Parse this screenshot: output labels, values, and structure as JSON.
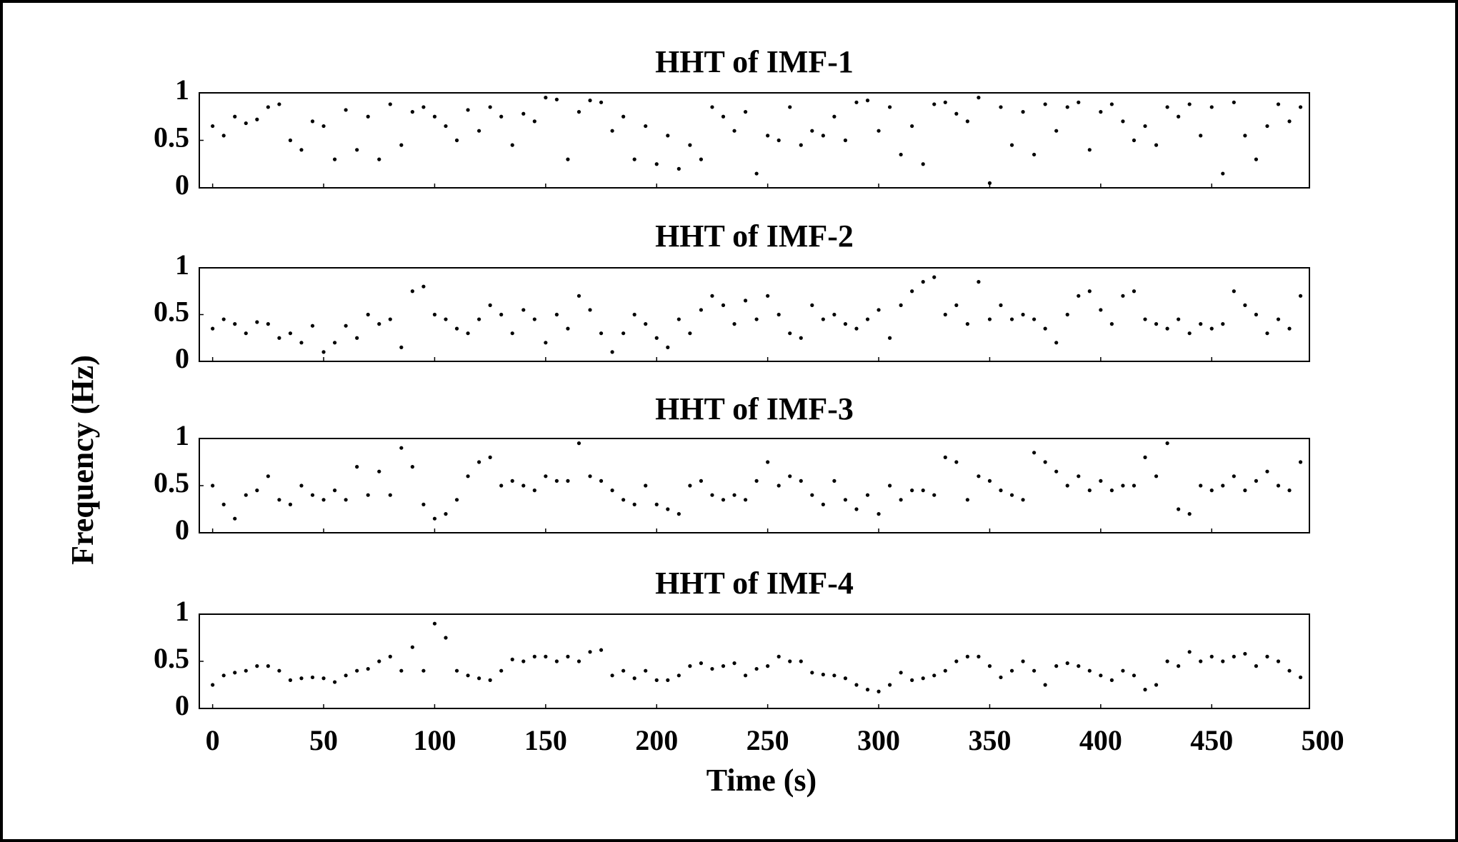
{
  "chart_data": {
    "type": "scatter",
    "xlabel": "Time  (s)",
    "ylabel": "Frequency  (Hz)",
    "color": "#000000",
    "x": [
      0,
      5,
      10,
      15,
      20,
      25,
      30,
      35,
      40,
      45,
      50,
      55,
      60,
      65,
      70,
      75,
      80,
      85,
      90,
      95,
      100,
      105,
      110,
      115,
      120,
      125,
      130,
      135,
      140,
      145,
      150,
      155,
      160,
      165,
      170,
      175,
      180,
      185,
      190,
      195,
      200,
      205,
      210,
      215,
      220,
      225,
      230,
      235,
      240,
      245,
      250,
      255,
      260,
      265,
      270,
      275,
      280,
      285,
      290,
      295,
      300,
      305,
      310,
      315,
      320,
      325,
      330,
      335,
      340,
      345,
      350,
      355,
      360,
      365,
      370,
      375,
      380,
      385,
      390,
      395,
      400,
      405,
      410,
      415,
      420,
      425,
      430,
      435,
      440,
      445,
      450,
      455,
      460,
      465,
      470,
      475,
      480,
      485,
      490
    ],
    "xlim": [
      -6,
      494
    ],
    "xticks": [
      0,
      50,
      100,
      150,
      200,
      250,
      300,
      350,
      400,
      450,
      500
    ],
    "ylim": [
      0,
      1
    ],
    "yticks": [
      0,
      0.5,
      1
    ],
    "series": [
      {
        "name": "HHT of IMF-1",
        "values": [
          0.65,
          0.55,
          0.75,
          0.68,
          0.72,
          0.85,
          0.88,
          0.5,
          0.4,
          0.7,
          0.65,
          0.3,
          0.82,
          0.4,
          0.75,
          0.3,
          0.88,
          0.45,
          0.8,
          0.85,
          0.75,
          0.65,
          0.5,
          0.82,
          0.6,
          0.85,
          0.75,
          0.45,
          0.78,
          0.7,
          0.95,
          0.93,
          0.3,
          0.8,
          0.92,
          0.9,
          0.6,
          0.75,
          0.3,
          0.65,
          0.25,
          0.55,
          0.2,
          0.45,
          0.3,
          0.85,
          0.75,
          0.6,
          0.8,
          0.15,
          0.55,
          0.5,
          0.85,
          0.45,
          0.6,
          0.55,
          0.75,
          0.5,
          0.9,
          0.92,
          0.6,
          0.85,
          0.35,
          0.65,
          0.25,
          0.88,
          0.9,
          0.78,
          0.7,
          0.95,
          0.05,
          0.85,
          0.45,
          0.8,
          0.35,
          0.88,
          0.6,
          0.85,
          0.9,
          0.4,
          0.8,
          0.88,
          0.7,
          0.5,
          0.65,
          0.45,
          0.85,
          0.75,
          0.88,
          0.55,
          0.85,
          0.15,
          0.9,
          0.55,
          0.3,
          0.65,
          0.88,
          0.7,
          0.85
        ]
      },
      {
        "name": "HHT of IMF-2",
        "values": [
          0.35,
          0.45,
          0.4,
          0.3,
          0.42,
          0.4,
          0.25,
          0.3,
          0.2,
          0.38,
          0.1,
          0.2,
          0.38,
          0.25,
          0.5,
          0.4,
          0.45,
          0.15,
          0.75,
          0.8,
          0.5,
          0.45,
          0.35,
          0.3,
          0.45,
          0.6,
          0.5,
          0.3,
          0.55,
          0.45,
          0.2,
          0.5,
          0.35,
          0.7,
          0.55,
          0.3,
          0.1,
          0.3,
          0.5,
          0.4,
          0.25,
          0.15,
          0.45,
          0.3,
          0.55,
          0.7,
          0.6,
          0.4,
          0.65,
          0.45,
          0.7,
          0.5,
          0.3,
          0.25,
          0.6,
          0.45,
          0.5,
          0.4,
          0.35,
          0.45,
          0.55,
          0.25,
          0.6,
          0.75,
          0.85,
          0.9,
          0.5,
          0.6,
          0.4,
          0.85,
          0.45,
          0.6,
          0.45,
          0.5,
          0.45,
          0.35,
          0.2,
          0.5,
          0.7,
          0.75,
          0.55,
          0.4,
          0.7,
          0.75,
          0.45,
          0.4,
          0.35,
          0.45,
          0.3,
          0.4,
          0.35,
          0.4,
          0.75,
          0.6,
          0.5,
          0.3,
          0.45,
          0.35,
          0.7
        ]
      },
      {
        "name": "HHT of IMF-3",
        "values": [
          0.5,
          0.3,
          0.15,
          0.4,
          0.45,
          0.6,
          0.35,
          0.3,
          0.5,
          0.4,
          0.35,
          0.45,
          0.35,
          0.7,
          0.4,
          0.65,
          0.4,
          0.9,
          0.7,
          0.3,
          0.15,
          0.2,
          0.35,
          0.6,
          0.75,
          0.8,
          0.5,
          0.55,
          0.5,
          0.45,
          0.6,
          0.55,
          0.55,
          0.95,
          0.6,
          0.55,
          0.45,
          0.35,
          0.3,
          0.5,
          0.3,
          0.25,
          0.2,
          0.5,
          0.55,
          0.4,
          0.35,
          0.4,
          0.35,
          0.55,
          0.75,
          0.5,
          0.6,
          0.55,
          0.4,
          0.3,
          0.55,
          0.35,
          0.25,
          0.4,
          0.2,
          0.5,
          0.35,
          0.45,
          0.45,
          0.4,
          0.8,
          0.75,
          0.35,
          0.6,
          0.55,
          0.45,
          0.4,
          0.35,
          0.85,
          0.75,
          0.65,
          0.5,
          0.6,
          0.45,
          0.55,
          0.45,
          0.5,
          0.5,
          0.8,
          0.6,
          0.95,
          0.25,
          0.2,
          0.5,
          0.45,
          0.5,
          0.6,
          0.45,
          0.55,
          0.65,
          0.5,
          0.45,
          0.75
        ]
      },
      {
        "name": "HHT of IMF-4",
        "values": [
          0.25,
          0.35,
          0.38,
          0.4,
          0.45,
          0.45,
          0.4,
          0.3,
          0.32,
          0.33,
          0.32,
          0.28,
          0.35,
          0.4,
          0.42,
          0.5,
          0.55,
          0.4,
          0.65,
          0.4,
          0.9,
          0.75,
          0.4,
          0.35,
          0.32,
          0.3,
          0.4,
          0.52,
          0.5,
          0.55,
          0.55,
          0.5,
          0.55,
          0.5,
          0.6,
          0.62,
          0.35,
          0.4,
          0.32,
          0.4,
          0.3,
          0.3,
          0.35,
          0.45,
          0.48,
          0.42,
          0.45,
          0.48,
          0.35,
          0.42,
          0.45,
          0.55,
          0.5,
          0.5,
          0.38,
          0.36,
          0.35,
          0.32,
          0.25,
          0.2,
          0.18,
          0.25,
          0.38,
          0.3,
          0.32,
          0.35,
          0.4,
          0.5,
          0.55,
          0.55,
          0.45,
          0.33,
          0.4,
          0.5,
          0.4,
          0.25,
          0.45,
          0.48,
          0.45,
          0.4,
          0.35,
          0.3,
          0.4,
          0.35,
          0.2,
          0.25,
          0.5,
          0.45,
          0.6,
          0.5,
          0.55,
          0.5,
          0.55,
          0.58,
          0.45,
          0.55,
          0.5,
          0.4,
          0.33
        ]
      }
    ]
  }
}
